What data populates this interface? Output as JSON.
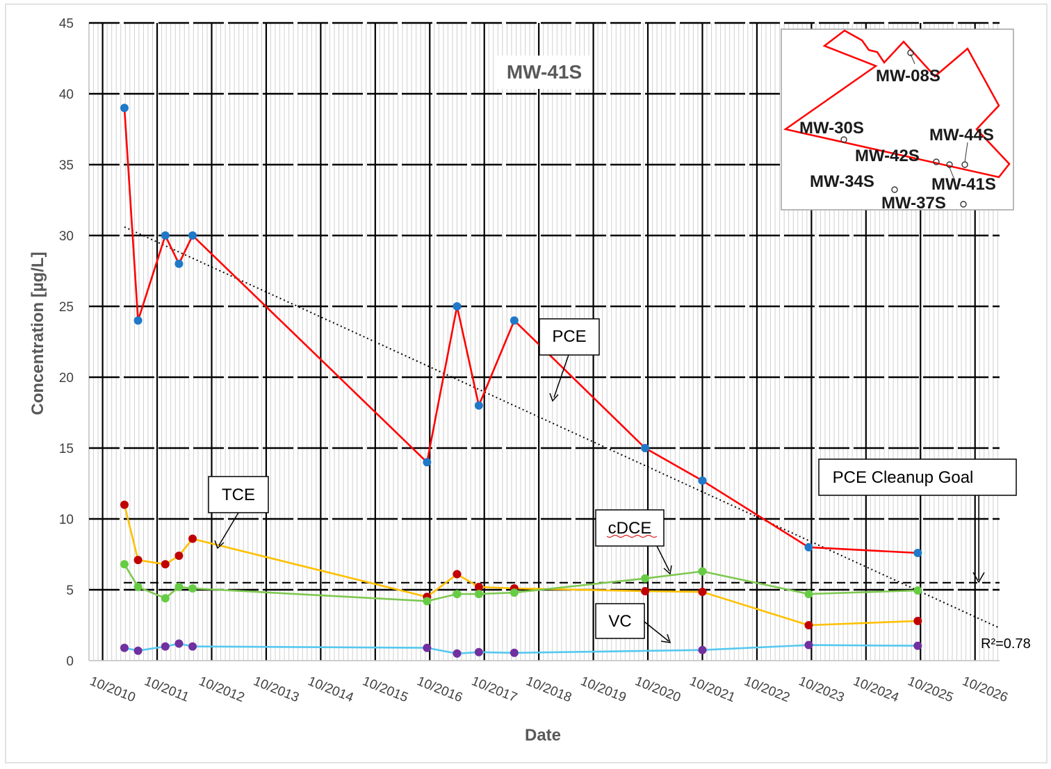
{
  "chart_data": {
    "type": "line",
    "title": "MW-41S",
    "xlabel": "Date",
    "ylabel": "Concentration [µg/L]",
    "ylim": [
      0,
      45
    ],
    "yticks": [
      0,
      5,
      10,
      15,
      20,
      25,
      30,
      35,
      40,
      45
    ],
    "xlim": [
      2010.75,
      2027.45
    ],
    "xtick_labels": [
      "10/2010",
      "10/2011",
      "10/2012",
      "10/2013",
      "10/2014",
      "10/2015",
      "10/2016",
      "10/2017",
      "10/2018",
      "10/2019",
      "10/2020",
      "10/2021",
      "10/2022",
      "10/2023",
      "10/2024",
      "10/2025",
      "10/2026"
    ],
    "grid": true,
    "series": [
      {
        "name": "PCE",
        "line_color": "#ff0000",
        "marker_color": "#1f78c8",
        "points": [
          {
            "x": 2011.4,
            "y": 39
          },
          {
            "x": 2011.65,
            "y": 24
          },
          {
            "x": 2012.15,
            "y": 30
          },
          {
            "x": 2012.4,
            "y": 28
          },
          {
            "x": 2012.65,
            "y": 30
          },
          {
            "x": 2016.95,
            "y": 14
          },
          {
            "x": 2017.5,
            "y": 25
          },
          {
            "x": 2017.9,
            "y": 18
          },
          {
            "x": 2018.55,
            "y": 24
          },
          {
            "x": 2020.95,
            "y": 15
          },
          {
            "x": 2022.0,
            "y": 12.7
          },
          {
            "x": 2023.95,
            "y": 8
          },
          {
            "x": 2025.95,
            "y": 7.6
          }
        ]
      },
      {
        "name": "TCE",
        "line_color": "#ffc000",
        "marker_color": "#c00000",
        "points": [
          {
            "x": 2011.4,
            "y": 11
          },
          {
            "x": 2011.65,
            "y": 7.1
          },
          {
            "x": 2012.15,
            "y": 6.8
          },
          {
            "x": 2012.4,
            "y": 7.4
          },
          {
            "x": 2012.65,
            "y": 8.6
          },
          {
            "x": 2016.95,
            "y": 4.5
          },
          {
            "x": 2017.5,
            "y": 6.1
          },
          {
            "x": 2017.9,
            "y": 5.2
          },
          {
            "x": 2018.55,
            "y": 5.1
          },
          {
            "x": 2020.95,
            "y": 4.9
          },
          {
            "x": 2022.0,
            "y": 4.85
          },
          {
            "x": 2023.95,
            "y": 2.5
          },
          {
            "x": 2025.95,
            "y": 2.8
          }
        ]
      },
      {
        "name": "cDCE",
        "line_color": "#7ec850",
        "marker_color": "#66cc44",
        "points": [
          {
            "x": 2011.4,
            "y": 6.8
          },
          {
            "x": 2011.65,
            "y": 5.2
          },
          {
            "x": 2012.15,
            "y": 4.4
          },
          {
            "x": 2012.4,
            "y": 5.2
          },
          {
            "x": 2012.65,
            "y": 5.1
          },
          {
            "x": 2016.95,
            "y": 4.2
          },
          {
            "x": 2017.5,
            "y": 4.7
          },
          {
            "x": 2017.9,
            "y": 4.7
          },
          {
            "x": 2018.55,
            "y": 4.8
          },
          {
            "x": 2020.95,
            "y": 5.8
          },
          {
            "x": 2022.0,
            "y": 6.3
          },
          {
            "x": 2023.95,
            "y": 4.7
          },
          {
            "x": 2025.95,
            "y": 4.95
          }
        ]
      },
      {
        "name": "VC",
        "line_color": "#55c8f0",
        "marker_color": "#7030a0",
        "points": [
          {
            "x": 2011.4,
            "y": 0.9
          },
          {
            "x": 2011.65,
            "y": 0.7
          },
          {
            "x": 2012.15,
            "y": 1.0
          },
          {
            "x": 2012.4,
            "y": 1.2
          },
          {
            "x": 2012.65,
            "y": 1.0
          },
          {
            "x": 2016.95,
            "y": 0.9
          },
          {
            "x": 2017.5,
            "y": 0.5
          },
          {
            "x": 2017.9,
            "y": 0.6
          },
          {
            "x": 2018.55,
            "y": 0.55
          },
          {
            "x": 2022.0,
            "y": 0.75
          },
          {
            "x": 2023.95,
            "y": 1.1
          },
          {
            "x": 2025.95,
            "y": 1.05
          }
        ]
      }
    ],
    "trendline": {
      "series": "PCE",
      "style": "dotted",
      "color": "#000000",
      "start": {
        "x": 2011.4,
        "y": 30.6
      },
      "end": {
        "x": 2027.45,
        "y": 2.3
      },
      "label": "R²=0.78"
    },
    "cleanup_goal": {
      "value": 5.5,
      "style": "dashed",
      "label": "PCE Cleanup Goal"
    },
    "callouts": [
      "PCE",
      "TCE",
      "cDCE",
      "VC"
    ],
    "inset_map_labels": [
      "MW-08S",
      "MW-30S",
      "MW-44S",
      "MW-42S",
      "MW-34S",
      "MW-41S",
      "MW-37S"
    ],
    "inset_boundary_color": "#ff0000"
  }
}
